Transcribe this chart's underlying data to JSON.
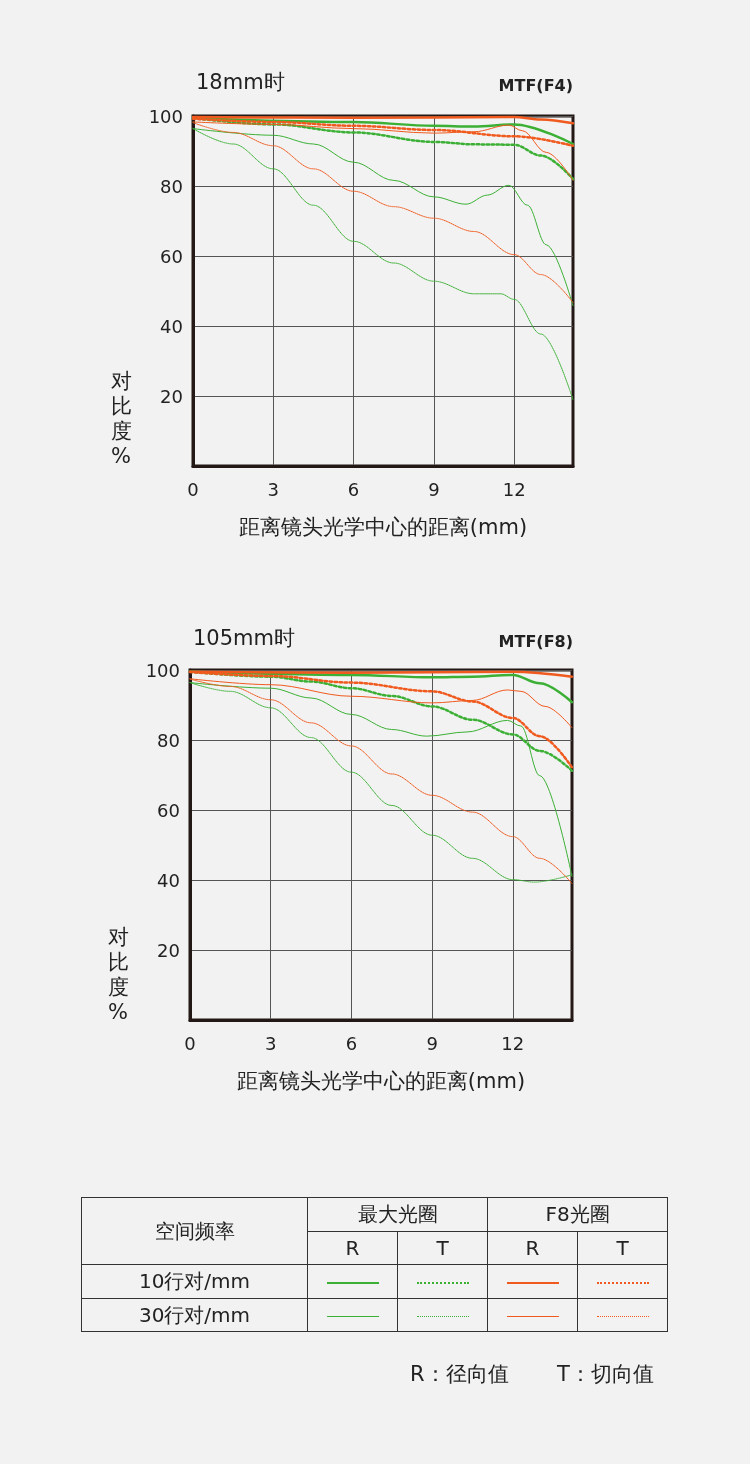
{
  "chart_data": [
    {
      "type": "line",
      "title": "18mm时",
      "subtitle": "MTF(F4)",
      "xlabel": "距离镜头光学中心的距离(mm)",
      "ylabel": "对比度%",
      "xlim": [
        0,
        14.2
      ],
      "ylim": [
        0,
        100
      ],
      "xticks": [
        0,
        3,
        6,
        9,
        12
      ],
      "yticks": [
        20,
        40,
        60,
        80,
        100
      ],
      "grid": true,
      "marker": "none",
      "series": [
        {
          "color": "#3cb035",
          "line_style": "solid",
          "x": [
            0,
            6,
            9,
            10.5,
            12,
            14.2
          ],
          "values": [
            99.4,
            98.3,
            97.2,
            97,
            97.6,
            92
          ]
        },
        {
          "color": "#3cb035",
          "line_style": "dotted",
          "x": [
            0,
            3,
            6,
            9,
            10.5,
            12,
            13,
            14.2
          ],
          "values": [
            99.4,
            97.6,
            95.3,
            92.6,
            91.9,
            91.8,
            88.7,
            82
          ]
        },
        {
          "color": "#3cb035",
          "line_style": "solid",
          "x": [
            0,
            3,
            4.5,
            6,
            7.5,
            9,
            10.2,
            11,
            11.8,
            12.5,
            13.2,
            14.2
          ],
          "values": [
            96.4,
            94.5,
            92,
            86.8,
            81.6,
            76.9,
            74.8,
            77.4,
            80.2,
            74.5,
            63.2,
            45.8
          ]
        },
        {
          "color": "#3cb035",
          "line_style": "dotted",
          "x": [
            0,
            1.5,
            3,
            4.5,
            6,
            7.5,
            9,
            10.5,
            11.5,
            12,
            13,
            14.2
          ],
          "values": [
            96.4,
            92,
            84.9,
            74.5,
            64.2,
            58,
            52.8,
            49.2,
            49.2,
            47.6,
            37.7,
            18.9
          ]
        },
        {
          "color": "#f05a1e",
          "line_style": "solid",
          "x": [
            0,
            6,
            12,
            13,
            14.2
          ],
          "values": [
            99.7,
            99.5,
            99.7,
            99,
            97.9
          ]
        },
        {
          "color": "#f05a1e",
          "line_style": "dotted",
          "x": [
            0,
            3,
            6,
            9,
            12,
            14.2
          ],
          "values": [
            99.2,
            98.3,
            97.2,
            96,
            94.2,
            91.5
          ]
        },
        {
          "color": "#f05a1e",
          "line_style": "solid",
          "x": [
            0,
            3,
            6,
            9,
            10.5,
            11.8,
            12.3,
            13.2,
            14.2
          ],
          "values": [
            98.3,
            97.6,
            96.4,
            95.1,
            95.5,
            97.4,
            95.8,
            89.6,
            81.6
          ]
        },
        {
          "color": "#f05a1e",
          "line_style": "dotted",
          "x": [
            0,
            1.5,
            3,
            4.5,
            6,
            7.5,
            9,
            10.5,
            12,
            13,
            14.2
          ],
          "values": [
            98.1,
            95.3,
            91.5,
            84.9,
            78.5,
            74.1,
            70.8,
            67,
            60.4,
            54.7,
            46.7
          ]
        }
      ]
    },
    {
      "type": "line",
      "title": "105mm时",
      "subtitle": "MTF(F8)",
      "xlabel": "距离镜头光学中心的距离(mm)",
      "ylabel": "对比度%",
      "xlim": [
        0,
        14.2
      ],
      "ylim": [
        0,
        100
      ],
      "xticks": [
        0,
        3,
        6,
        9,
        12
      ],
      "yticks": [
        20,
        40,
        60,
        80,
        100
      ],
      "grid": true,
      "marker": "none",
      "series": [
        {
          "color": "#3cb035",
          "line_style": "solid",
          "x": [
            0,
            6,
            9,
            10.5,
            12,
            13,
            14.2
          ],
          "values": [
            99.5,
            98.6,
            97.9,
            98.1,
            98.6,
            96.2,
            90.8
          ]
        },
        {
          "color": "#3cb035",
          "line_style": "dotted",
          "x": [
            0,
            3,
            4.5,
            6,
            7.5,
            9,
            10.5,
            12,
            13,
            14.2
          ],
          "values": [
            99.5,
            98.1,
            96.7,
            94.8,
            92.6,
            89.6,
            85.8,
            81.6,
            76.9,
            71.2
          ]
        },
        {
          "color": "#3cb035",
          "line_style": "solid",
          "x": [
            0,
            3,
            4.5,
            6,
            7.5,
            8.8,
            10.3,
            11.8,
            12.3,
            13,
            14.2
          ],
          "values": [
            96.4,
            94.8,
            92,
            87.3,
            83,
            81.1,
            82.3,
            85.6,
            84,
            69.8,
            41
          ]
        },
        {
          "color": "#3cb035",
          "line_style": "dotted",
          "x": [
            0,
            1.5,
            3,
            4.5,
            6,
            7.5,
            9,
            10.5,
            12,
            12.8,
            14.2
          ],
          "values": [
            96.4,
            93.9,
            89.2,
            80.7,
            70.8,
            61.3,
            52.8,
            46.2,
            40.1,
            39.4,
            41.5
          ]
        },
        {
          "color": "#f05a1e",
          "line_style": "solid",
          "x": [
            0,
            6,
            12,
            14.2
          ],
          "values": [
            99.5,
            99.2,
            99.5,
            98.1
          ]
        },
        {
          "color": "#f05a1e",
          "line_style": "dotted",
          "x": [
            0,
            3,
            6,
            9,
            10.5,
            12,
            13,
            14.2
          ],
          "values": [
            99.4,
            98.3,
            96.4,
            93.9,
            91,
            86.3,
            81.1,
            72.2
          ]
        },
        {
          "color": "#f05a1e",
          "line_style": "solid",
          "x": [
            0,
            3,
            6,
            9,
            10.5,
            11.8,
            12.3,
            13.2,
            14.2
          ],
          "values": [
            97.5,
            95.8,
            92.5,
            90.6,
            91.3,
            94.3,
            93.9,
            89.6,
            83.5
          ]
        },
        {
          "color": "#f05a1e",
          "line_style": "dotted",
          "x": [
            0,
            1.5,
            3,
            4.5,
            6,
            7.5,
            9,
            10.5,
            12,
            13,
            14.2
          ],
          "values": [
            97.4,
            95.3,
            91.5,
            84.9,
            78.3,
            70.3,
            64.2,
            59.4,
            52.4,
            46.2,
            39
          ]
        }
      ]
    },
    {
      "type": "other",
      "annotations": [
        "空间频率",
        "最大光圈",
        "F8光圈",
        "R",
        "T",
        "R",
        "T",
        "10行对/mm",
        "30行对/mm",
        "R：径向值",
        "T：切向值"
      ]
    }
  ]
}
